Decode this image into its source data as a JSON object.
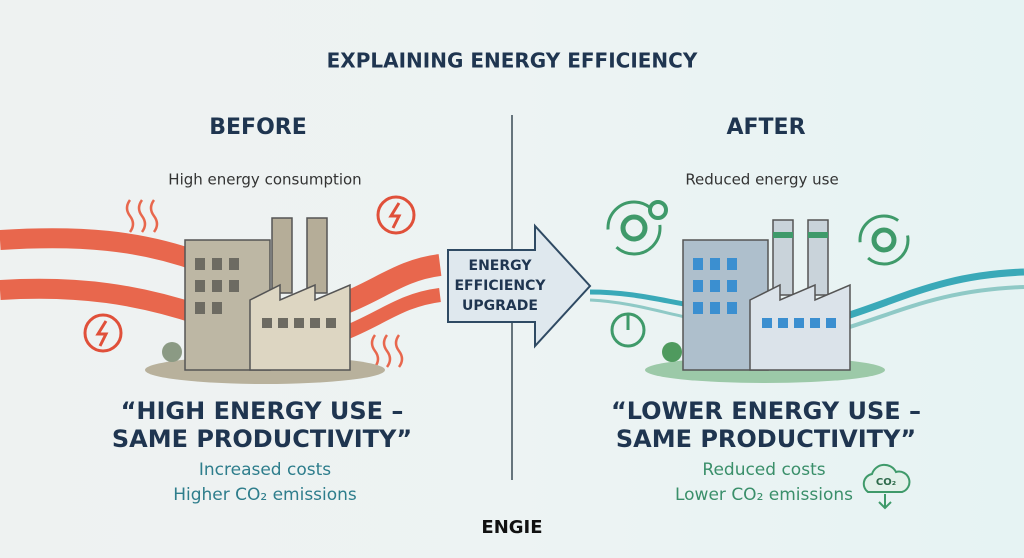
{
  "title": "EXPLAINING ENERGY EFFICIENCY",
  "before": {
    "heading": "BEFORE",
    "subtitle": "High energy consumption",
    "quote": [
      "“HIGH ENERGY USE –",
      "SAME PRODUCTIVITY”"
    ],
    "notes": [
      "Increased costs",
      "Higher CO₂ emissions"
    ]
  },
  "upgrade": {
    "label": [
      "ENERGY",
      "EFFICIENCY",
      "UPGRADE"
    ]
  },
  "after": {
    "heading": "AFTER",
    "subtitle": "Reduced energy use",
    "quote": [
      "“LOWER ENERGY USE –",
      "SAME PRODUCTIVITY”"
    ],
    "notes": [
      "Reduced costs",
      "Lower CO₂ emissions"
    ],
    "co2_icon": "CO₂"
  },
  "logo": "ENGIE"
}
